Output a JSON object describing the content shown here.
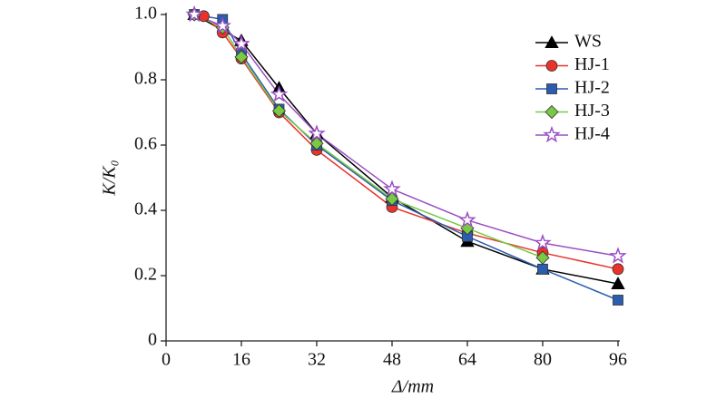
{
  "chart_data": {
    "type": "line",
    "x_label": "Δ/mm",
    "y_label": "K/K₀",
    "xlim": [
      0,
      96
    ],
    "xticks": [
      0,
      16,
      32,
      48,
      64,
      80,
      96
    ],
    "ylim": [
      0,
      1
    ],
    "yticks": [
      0,
      0.2,
      0.4,
      0.6,
      0.8,
      {
        "value": 1,
        "label": "1.0"
      }
    ],
    "legend": "upper right",
    "series": [
      {
        "name": "WS",
        "color": "#000000",
        "marker": "triangle",
        "x": [
          6,
          16,
          24,
          32,
          48,
          64,
          80,
          96
        ],
        "values": [
          1.0,
          0.92,
          0.775,
          0.635,
          0.44,
          0.305,
          0.22,
          0.175
        ]
      },
      {
        "name": "HJ-1",
        "color": "#e8322a",
        "marker": "circle",
        "x": [
          6,
          8,
          12,
          16,
          24,
          32,
          48,
          64,
          80,
          96
        ],
        "values": [
          1.0,
          0.995,
          0.945,
          0.865,
          0.7,
          0.585,
          0.41,
          0.33,
          0.27,
          0.22
        ]
      },
      {
        "name": "HJ-2",
        "color": "#2a5db0",
        "marker": "square",
        "x": [
          6,
          12,
          16,
          24,
          32,
          48,
          64,
          80,
          96
        ],
        "values": [
          1.0,
          0.985,
          0.88,
          0.71,
          0.6,
          0.43,
          0.32,
          0.22,
          0.125
        ]
      },
      {
        "name": "HJ-3",
        "color": "#7ac943",
        "marker": "diamond",
        "x": [
          6,
          12,
          16,
          24,
          32,
          48,
          64,
          80
        ],
        "values": [
          1.0,
          0.96,
          0.87,
          0.705,
          0.605,
          0.435,
          0.345,
          0.255
        ]
      },
      {
        "name": "HJ-4",
        "color": "#9b4fc2",
        "marker": "star",
        "x": [
          6,
          12,
          16,
          24,
          32,
          48,
          64,
          80,
          96
        ],
        "values": [
          1.0,
          0.965,
          0.91,
          0.755,
          0.635,
          0.465,
          0.37,
          0.3,
          0.26
        ]
      }
    ]
  }
}
